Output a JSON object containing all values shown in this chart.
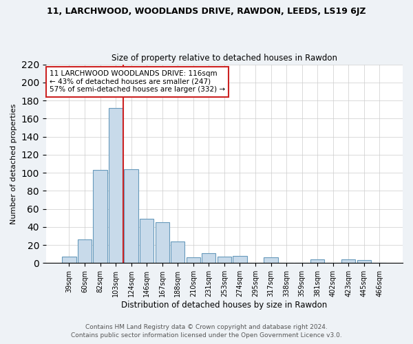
{
  "title_main": "11, LARCHWOOD, WOODLANDS DRIVE, RAWDON, LEEDS, LS19 6JZ",
  "title_sub": "Size of property relative to detached houses in Rawdon",
  "xlabel": "Distribution of detached houses by size in Rawdon",
  "ylabel": "Number of detached properties",
  "bar_labels": [
    "39sqm",
    "60sqm",
    "82sqm",
    "103sqm",
    "124sqm",
    "146sqm",
    "167sqm",
    "188sqm",
    "210sqm",
    "231sqm",
    "253sqm",
    "274sqm",
    "295sqm",
    "317sqm",
    "338sqm",
    "359sqm",
    "381sqm",
    "402sqm",
    "423sqm",
    "445sqm",
    "466sqm"
  ],
  "bar_values": [
    7,
    26,
    103,
    172,
    104,
    49,
    45,
    24,
    6,
    11,
    7,
    8,
    0,
    6,
    0,
    0,
    4,
    0,
    4,
    3,
    0
  ],
  "bar_color": "#c8daea",
  "bar_edgecolor": "#6699bb",
  "ylim": [
    0,
    220
  ],
  "yticks": [
    0,
    20,
    40,
    60,
    80,
    100,
    120,
    140,
    160,
    180,
    200,
    220
  ],
  "vline_color": "#cc2222",
  "vline_pos": 3.5,
  "annotation_text": "11 LARCHWOOD WOODLANDS DRIVE: 116sqm\n← 43% of detached houses are smaller (247)\n57% of semi-detached houses are larger (332) →",
  "annotation_box_edgecolor": "#cc2222",
  "footer_line1": "Contains HM Land Registry data © Crown copyright and database right 2024.",
  "footer_line2": "Contains public sector information licensed under the Open Government Licence v3.0.",
  "bg_color": "#eef2f6",
  "plot_bg_color": "#ffffff",
  "title_fontsize": 9,
  "subtitle_fontsize": 8.5,
  "ylabel_fontsize": 8,
  "xlabel_fontsize": 8.5,
  "tick_fontsize": 7,
  "annotation_fontsize": 7.5,
  "footer_fontsize": 6.5
}
